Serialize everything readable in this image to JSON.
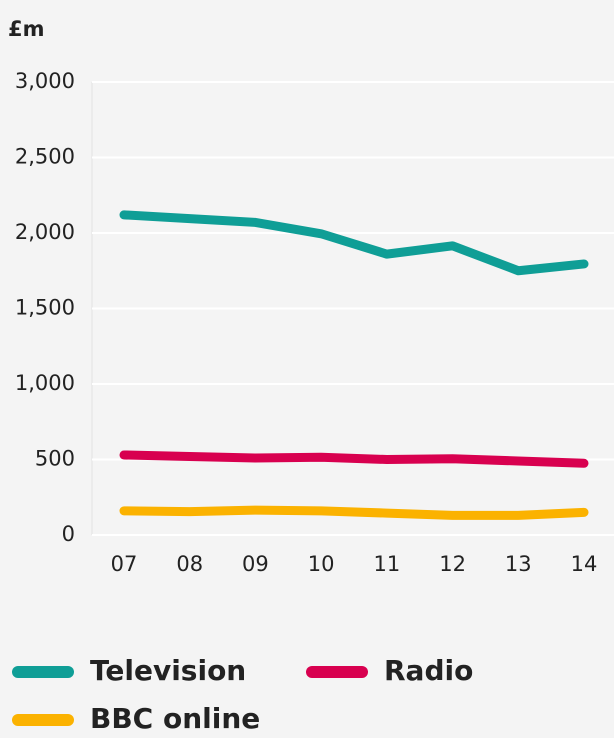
{
  "chart_data": {
    "type": "line",
    "y_label": "£m",
    "categories": [
      "07",
      "08",
      "09",
      "10",
      "11",
      "12",
      "13",
      "14"
    ],
    "series": [
      {
        "name": "Television",
        "color": "#0f9e96",
        "values": [
          2120,
          2095,
          2070,
          1995,
          1860,
          1915,
          1750,
          1795
        ]
      },
      {
        "name": "Radio",
        "color": "#d8004f",
        "values": [
          530,
          520,
          510,
          515,
          500,
          505,
          490,
          475
        ]
      },
      {
        "name": "BBC online",
        "color": "#fbb200",
        "values": [
          160,
          155,
          165,
          160,
          145,
          130,
          130,
          150
        ]
      }
    ],
    "ylim": [
      0,
      3000
    ],
    "yticks": [
      0,
      500,
      {
        "value": 1000,
        "label": "1,000"
      },
      {
        "value": 1500,
        "label": "1,500"
      },
      {
        "value": 2000,
        "label": "2,000"
      },
      {
        "value": 2500,
        "label": "2,500"
      },
      {
        "value": 3000,
        "label": "3,000"
      }
    ],
    "grid": true
  }
}
